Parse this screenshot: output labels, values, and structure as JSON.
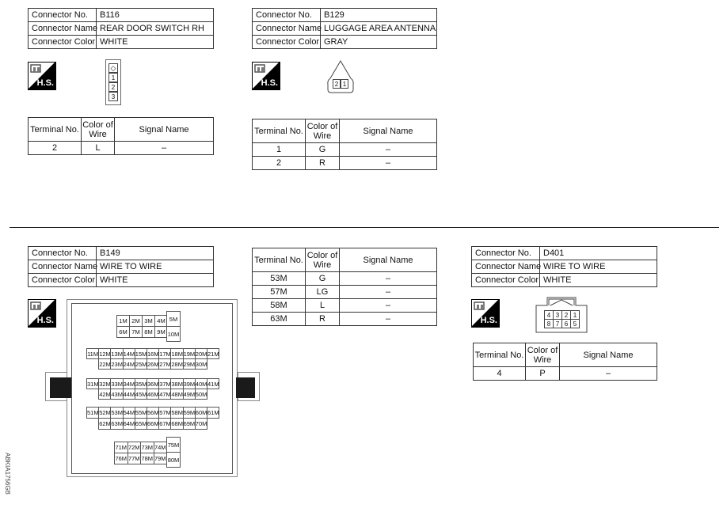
{
  "watermark": "ABKIA1756GB",
  "hs_label": "H.S.",
  "labels": {
    "connector_no": "Connector No.",
    "connector_name": "Connector Name",
    "connector_color": "Connector Color",
    "terminal_no": "Terminal No.",
    "color_of_wire": "Color of Wire",
    "signal_name": "Signal Name"
  },
  "connectors": [
    {
      "no": "B116",
      "name": "REAR DOOR SWITCH RH",
      "color": "WHITE",
      "pins": [
        "1",
        "2",
        "3"
      ],
      "terminals": [
        {
          "no": "2",
          "wire": "L",
          "signal": "–"
        }
      ]
    },
    {
      "no": "B129",
      "name": "LUGGAGE AREA ANTENNA",
      "color": "GRAY",
      "pins": [
        "2",
        "1"
      ],
      "terminals": [
        {
          "no": "1",
          "wire": "G",
          "signal": "–"
        },
        {
          "no": "2",
          "wire": "R",
          "signal": "–"
        }
      ]
    },
    {
      "no": "B149",
      "name": "WIRE TO WIRE",
      "color": "WHITE",
      "pin_groups": [
        {
          "row1": [
            "1M",
            "2M",
            "3M",
            "4M"
          ],
          "row2": [
            "6M",
            "7M",
            "8M",
            "9M"
          ],
          "tall": [
            "5M",
            "10M"
          ]
        },
        {
          "row1": [
            "11M",
            "12M",
            "13M",
            "14M",
            "15M",
            "16M",
            "17M",
            "18M",
            "19M",
            "20M",
            "21M"
          ],
          "row2": [
            "22M",
            "23M",
            "24M",
            "25M",
            "26M",
            "27M",
            "28M",
            "29M",
            "30M"
          ]
        },
        {
          "row1": [
            "31M",
            "32M",
            "33M",
            "34M",
            "35M",
            "36M",
            "37M",
            "38M",
            "39M",
            "40M",
            "41M"
          ],
          "row2": [
            "42M",
            "43M",
            "44M",
            "45M",
            "46M",
            "47M",
            "48M",
            "49M",
            "50M"
          ]
        },
        {
          "row1": [
            "51M",
            "52M",
            "53M",
            "54M",
            "55M",
            "56M",
            "57M",
            "58M",
            "59M",
            "60M",
            "61M"
          ],
          "row2": [
            "62M",
            "63M",
            "64M",
            "65M",
            "66M",
            "67M",
            "68M",
            "69M",
            "70M"
          ]
        },
        {
          "row1": [
            "71M",
            "72M",
            "73M",
            "74M"
          ],
          "row2": [
            "76M",
            "77M",
            "78M",
            "79M"
          ],
          "tall": [
            "75M",
            "80M"
          ]
        }
      ],
      "terminals": [
        {
          "no": "53M",
          "wire": "G",
          "signal": "–"
        },
        {
          "no": "57M",
          "wire": "LG",
          "signal": "–"
        },
        {
          "no": "58M",
          "wire": "L",
          "signal": "–"
        },
        {
          "no": "63M",
          "wire": "R",
          "signal": "–"
        }
      ]
    },
    {
      "no": "D401",
      "name": "WIRE TO WIRE",
      "color": "WHITE",
      "pins": [
        [
          "4",
          "3",
          "2",
          "1"
        ],
        [
          "8",
          "7",
          "6",
          "5"
        ]
      ],
      "terminals": [
        {
          "no": "4",
          "wire": "P",
          "signal": "–"
        }
      ]
    }
  ]
}
